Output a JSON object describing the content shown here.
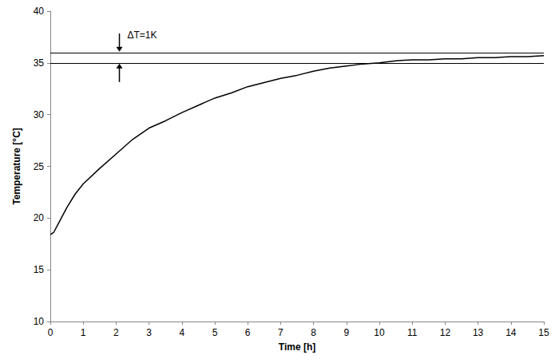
{
  "chart_data": {
    "type": "line",
    "x_label": "Time [h]",
    "y_label": "Temperature [°C]",
    "x": [
      0,
      0.1,
      0.25,
      0.5,
      0.75,
      1,
      1.5,
      2,
      2.5,
      3,
      3.5,
      4,
      4.5,
      5,
      5.5,
      6,
      6.5,
      7,
      7.5,
      8,
      8.5,
      9,
      9.5,
      10,
      10.5,
      11,
      11.5,
      12,
      12.5,
      13,
      13.5,
      14,
      14.5,
      15
    ],
    "values": [
      18.4,
      18.6,
      19.5,
      21.0,
      22.3,
      23.3,
      24.8,
      26.2,
      27.6,
      28.7,
      29.4,
      30.2,
      30.9,
      31.6,
      32.1,
      32.7,
      33.1,
      33.5,
      33.8,
      34.2,
      34.5,
      34.7,
      34.9,
      35.0,
      35.2,
      35.3,
      35.3,
      35.4,
      35.4,
      35.5,
      35.5,
      35.6,
      35.6,
      35.7
    ],
    "color": "#000000",
    "xlim": [
      0,
      15
    ],
    "xticks": [
      0,
      1,
      2,
      3,
      4,
      5,
      6,
      7,
      8,
      9,
      10,
      11,
      12,
      13,
      14,
      15
    ],
    "ylim": [
      10,
      40
    ],
    "yticks": [
      10,
      15,
      20,
      25,
      30,
      35,
      40
    ],
    "grid": false,
    "hlines": [
      35,
      36
    ],
    "annotations": [
      {
        "text": "ΔT=1K",
        "x": 2.1,
        "y": 37.7
      }
    ]
  }
}
